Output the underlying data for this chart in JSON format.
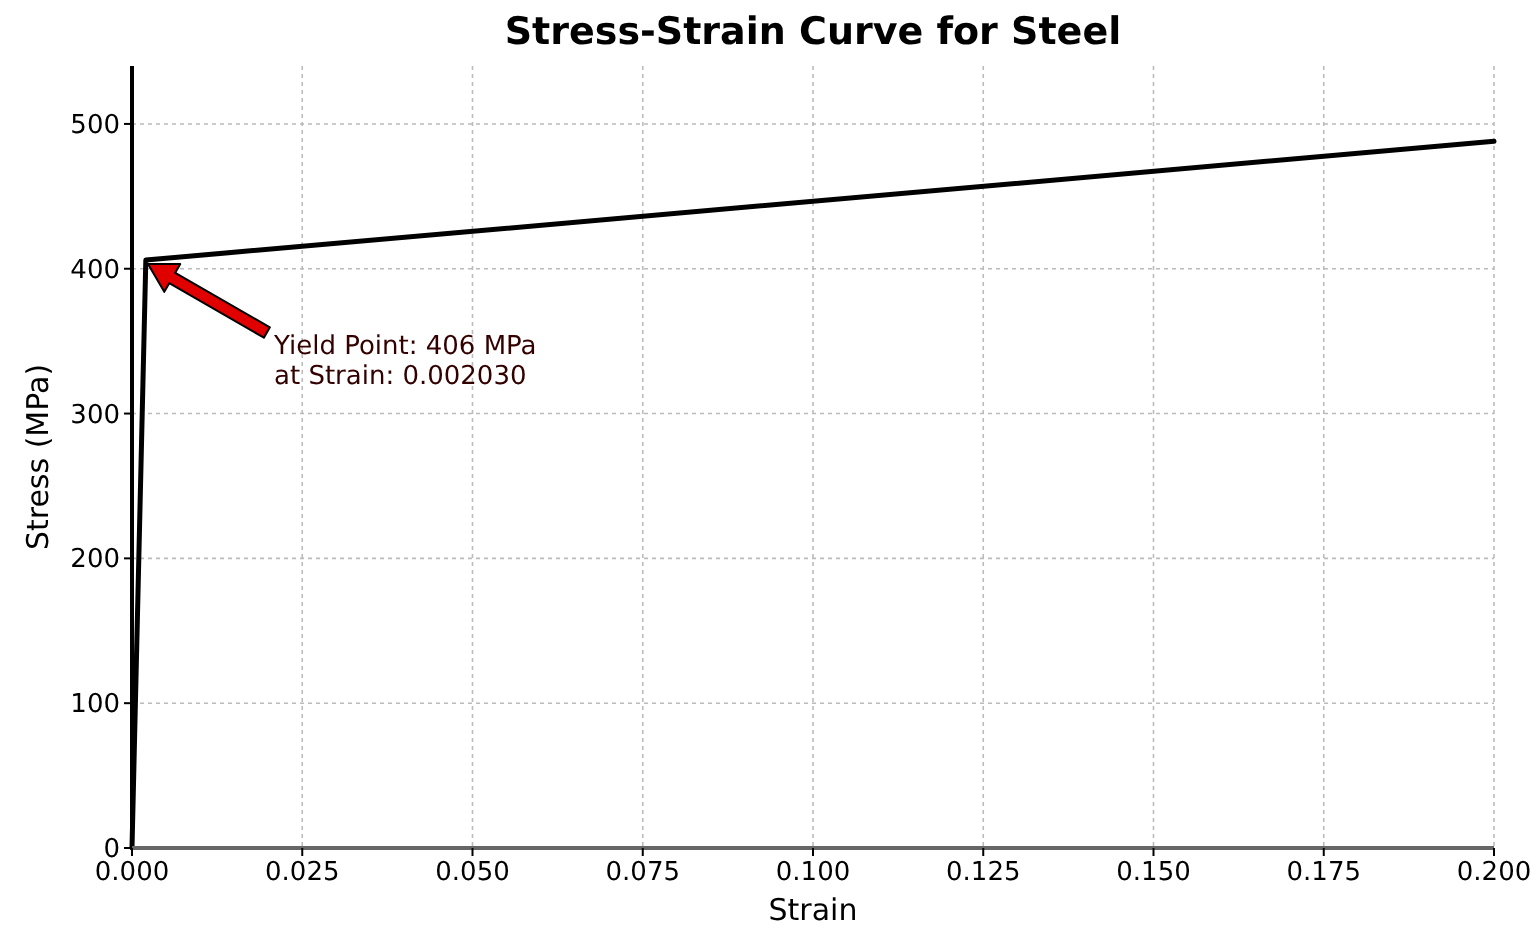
{
  "chart_data": {
    "type": "line",
    "title": "Stress-Strain Curve for Steel",
    "xlabel": "Strain",
    "ylabel": "Stress (MPa)",
    "x": [
      0,
      0.00203,
      0.2
    ],
    "series": [
      {
        "color": "#000000",
        "values": [
          0,
          406,
          488
        ]
      }
    ],
    "xlim": [
      0,
      0.2
    ],
    "xticks": [
      {
        "value": 0,
        "label": "0.000"
      },
      0.025,
      {
        "value": 0.05,
        "label": "0.050"
      },
      0.075,
      {
        "value": 0.1,
        "label": "0.100"
      },
      0.125,
      {
        "value": 0.15,
        "label": "0.150"
      },
      0.175,
      {
        "value": 0.2,
        "label": "0.200"
      }
    ],
    "ylim": [
      0,
      540
    ],
    "yticks": [
      0,
      100,
      200,
      300,
      400,
      500
    ],
    "grid": true,
    "line_style": "solid",
    "marker": "none",
    "annotations": [
      "Yield Point: 406 MPa\nat Strain: 0.002030"
    ]
  }
}
